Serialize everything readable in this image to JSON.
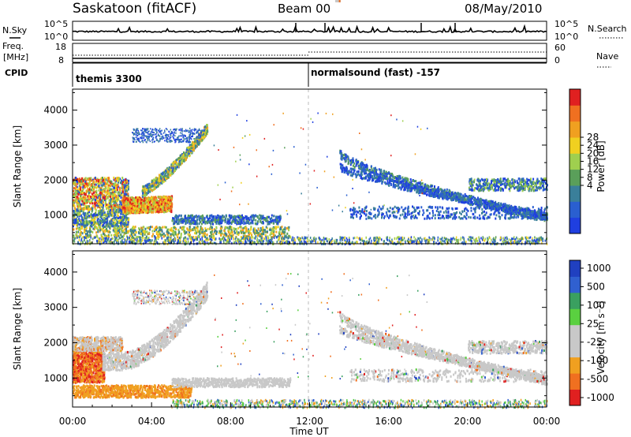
{
  "header": {
    "station": "Saskatoon (fitACF)",
    "beam": "Beam 00",
    "date": "08/May/2010"
  },
  "colors": {
    "axis": "#000000",
    "divider": "#bbbbbb",
    "power_scale": [
      "#1f3fe0",
      "#2a5fd0",
      "#3a7f9a",
      "#5a9f5a",
      "#9fcf4f",
      "#f0d020",
      "#f0a020",
      "#f07020",
      "#e02020"
    ],
    "velocity_scale": [
      "#e02020",
      "#f07020",
      "#f0a020",
      "#c8c8c8",
      "#c8c8c8",
      "#5ad040",
      "#3aa060",
      "#3060d0",
      "#2040c0"
    ],
    "ground_scatter": "#c8c8c8"
  },
  "strip_panel": {
    "left_label_top": "N.Sky",
    "left_label_bottom": "Freq.",
    "left_label_unit": "[MHz]",
    "left_label_cpid": "CPID",
    "right_label_top": "N.Search",
    "right_label_bottom": "Nave",
    "nsky_ticks": [
      "10^5",
      "10^0"
    ],
    "nsearch_ticks": [
      "10^5",
      "10^0"
    ],
    "freq_ticks": [
      "18",
      "8"
    ],
    "nave_ticks": [
      "60",
      "0"
    ],
    "cpid_left": "themis 3300",
    "cpid_right": "normalsound (fast) -157"
  },
  "chart_data": [
    {
      "type": "heatmap",
      "title": "",
      "xlabel": "",
      "ylabel": "Slant Range [km]",
      "colorbar_label": "Power [dB]",
      "colorbar_ticks": [
        "28",
        "24",
        "20",
        "16",
        "12",
        "8",
        "4"
      ],
      "ylim": [
        180,
        4600
      ],
      "xlim": [
        "00:00",
        "24:00"
      ],
      "yticks": [
        "4000",
        "3000",
        "2000",
        "1000"
      ]
    },
    {
      "type": "heatmap",
      "title": "",
      "xlabel": "Time UT",
      "ylabel": "Slant Range [km]",
      "colorbar_label": "Velocity [m s⁻¹]",
      "colorbar_ticks": [
        "1000",
        "500",
        "100",
        "25",
        "-25",
        "-100",
        "-500",
        "-1000"
      ],
      "ylim": [
        180,
        4600
      ],
      "xlim": [
        "00:00",
        "24:00"
      ],
      "yticks": [
        "4000",
        "3000",
        "2000",
        "1000"
      ],
      "xticks": [
        "00:00",
        "04:00",
        "08:00",
        "12:00",
        "16:00",
        "20:00",
        "00:00"
      ]
    }
  ]
}
